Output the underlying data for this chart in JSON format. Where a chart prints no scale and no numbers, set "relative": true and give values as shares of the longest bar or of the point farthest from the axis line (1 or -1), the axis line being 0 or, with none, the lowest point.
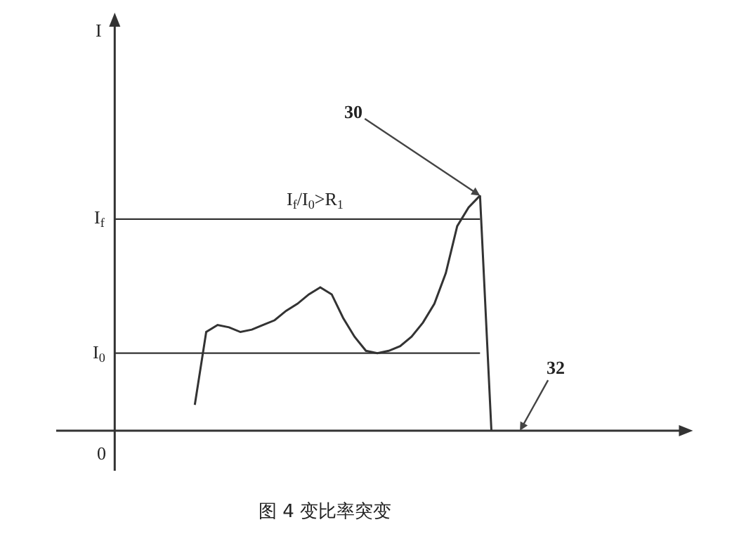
{
  "chart_data": {
    "type": "line",
    "relative": true,
    "grid": false,
    "marker": "none",
    "line_style": "solid",
    "categories": [
      null,
      null,
      null,
      null,
      null,
      null,
      null,
      null,
      null,
      null,
      null,
      null,
      null,
      null,
      null,
      null,
      null,
      null,
      null,
      null,
      null,
      null,
      null,
      null,
      null,
      null,
      null
    ],
    "series": [
      {
        "color": "#333333",
        "values": [
          0.11,
          0.42,
          0.45,
          0.44,
          0.42,
          0.43,
          0.45,
          0.47,
          0.51,
          0.54,
          0.58,
          0.61,
          0.58,
          0.48,
          0.4,
          0.34,
          0.33,
          0.34,
          0.36,
          0.4,
          0.46,
          0.54,
          0.67,
          0.87,
          0.95,
          1,
          0
        ]
      }
    ],
    "ref_lines": [
      {
        "axis": "y",
        "value": 0.9,
        "label": "I$_{f}$",
        "color": "#333333",
        "line_style": "solid"
      },
      {
        "axis": "y",
        "value": 0.33,
        "label": "I$_{0}$",
        "color": "#333333",
        "line_style": "solid"
      }
    ],
    "annotations": [
      "I",
      "I$_{f}$/I$_{0}$>R$_{1}$",
      "30",
      "32",
      "0",
      "图 4 变比率突变"
    ]
  }
}
